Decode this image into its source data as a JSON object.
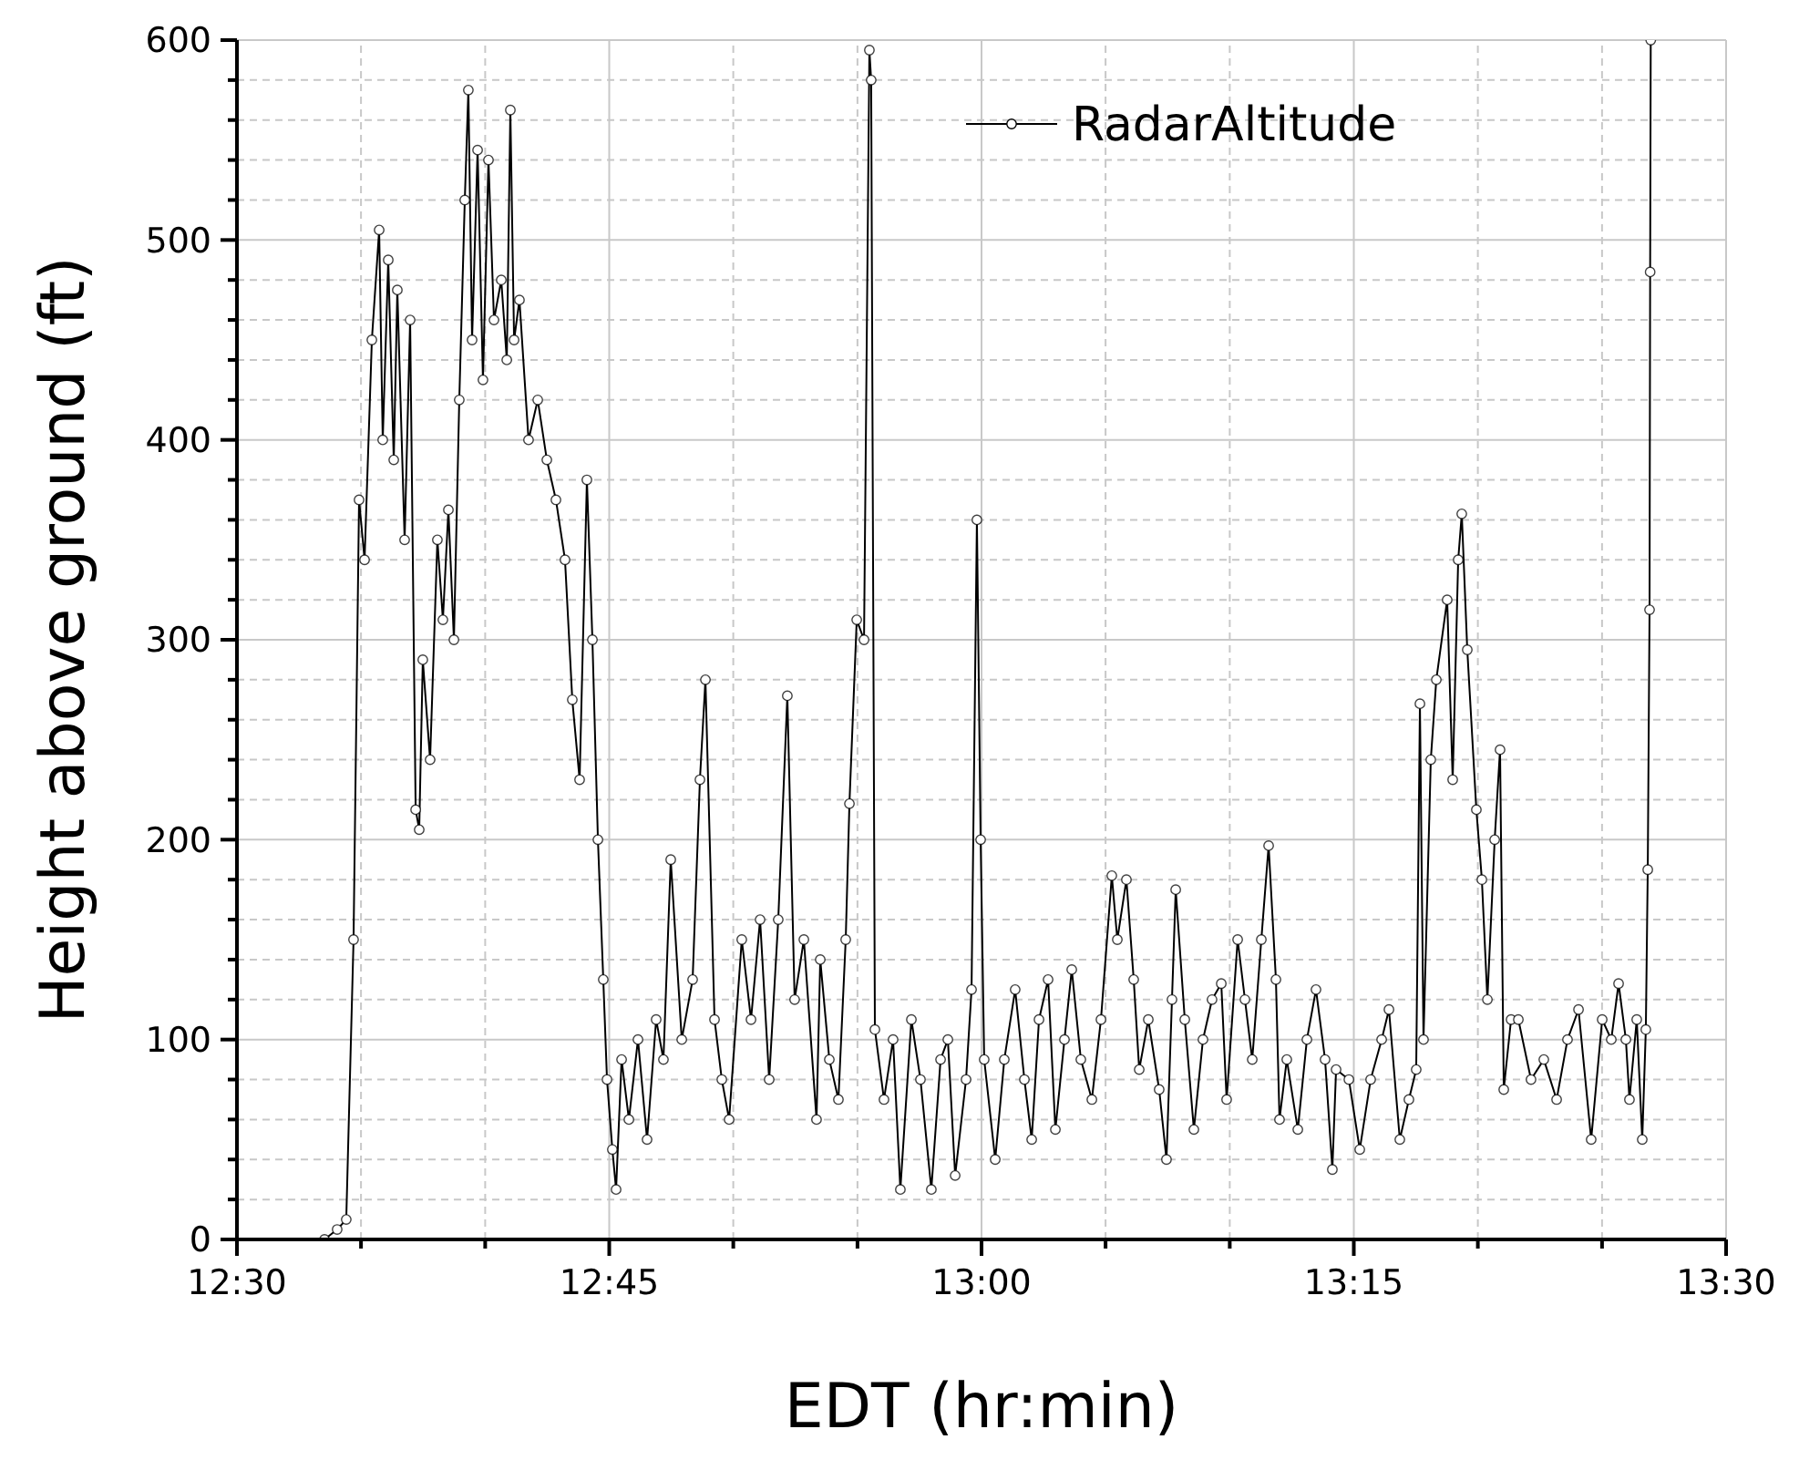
{
  "chart_data": {
    "type": "line",
    "xlabel": "EDT (hr:min)",
    "ylabel": "Height above ground (ft)",
    "xlim": [
      12.5,
      13.5
    ],
    "ylim": [
      0,
      600
    ],
    "xticks": [
      {
        "value": 12.5,
        "label": "12:30"
      },
      {
        "value": 12.5833,
        "label": null
      },
      {
        "value": 12.6667,
        "label": null
      },
      {
        "value": 12.75,
        "label": "12:45"
      },
      {
        "value": 12.8333,
        "label": null
      },
      {
        "value": 12.9167,
        "label": null
      },
      {
        "value": 13,
        "label": "13:00"
      },
      {
        "value": 13.0833,
        "label": null
      },
      {
        "value": 13.1667,
        "label": null
      },
      {
        "value": 13.25,
        "label": "13:15"
      },
      {
        "value": 13.3333,
        "label": null
      },
      {
        "value": 13.4167,
        "label": null
      },
      {
        "value": 13.5,
        "label": "13:30"
      }
    ],
    "yticks": [
      0,
      {
        "value": 20,
        "label": null
      },
      {
        "value": 40,
        "label": null
      },
      {
        "value": 60,
        "label": null
      },
      {
        "value": 80,
        "label": null
      },
      100,
      {
        "value": 120,
        "label": null
      },
      {
        "value": 140,
        "label": null
      },
      {
        "value": 160,
        "label": null
      },
      {
        "value": 180,
        "label": null
      },
      200,
      {
        "value": 220,
        "label": null
      },
      {
        "value": 240,
        "label": null
      },
      {
        "value": 260,
        "label": null
      },
      {
        "value": 280,
        "label": null
      },
      300,
      {
        "value": 320,
        "label": null
      },
      {
        "value": 340,
        "label": null
      },
      {
        "value": 360,
        "label": null
      },
      {
        "value": 380,
        "label": null
      },
      400,
      {
        "value": 420,
        "label": null
      },
      {
        "value": 440,
        "label": null
      },
      {
        "value": 460,
        "label": null
      },
      {
        "value": 480,
        "label": null
      },
      500,
      {
        "value": 520,
        "label": null
      },
      {
        "value": 540,
        "label": null
      },
      {
        "value": 560,
        "label": null
      },
      {
        "value": 580,
        "label": null
      },
      600
    ],
    "grid": true,
    "legend": "top right",
    "marker": "circle",
    "line_style": "solid",
    "series": [
      {
        "name": "RadarAltitude",
        "color": "#000000",
        "x": [
          12.5588,
          12.5673,
          12.5734,
          12.5783,
          12.582,
          12.5857,
          12.5906,
          12.5955,
          12.5979,
          12.6016,
          12.6053,
          12.6077,
          12.6126,
          12.6163,
          12.62,
          12.6224,
          12.6248,
          12.6297,
          12.6346,
          12.6383,
          12.642,
          12.6457,
          12.6493,
          12.653,
          12.6554,
          12.6579,
          12.6616,
          12.6652,
          12.6689,
          12.6726,
          12.6775,
          12.6812,
          12.6836,
          12.6861,
          12.6897,
          12.6958,
          12.702,
          12.7081,
          12.7142,
          12.7203,
          12.7252,
          12.7301,
          12.735,
          12.7387,
          12.7424,
          12.746,
          12.7485,
          12.7521,
          12.7546,
          12.7583,
          12.7632,
          12.7693,
          12.7754,
          12.7815,
          12.7864,
          12.7913,
          12.7987,
          12.806,
          12.8109,
          12.8146,
          12.8207,
          12.8256,
          12.8305,
          12.839,
          12.8452,
          12.8513,
          12.8574,
          12.8635,
          12.8696,
          12.8745,
          12.8807,
          12.8892,
          12.8917,
          12.8978,
          12.9039,
          12.9088,
          12.9113,
          12.9162,
          12.9211,
          12.9247,
          12.9259,
          12.9284,
          12.9345,
          12.9406,
          12.9455,
          12.9529,
          12.959,
          12.9663,
          12.9725,
          12.9774,
          12.9823,
          12.9896,
          12.9933,
          12.9969,
          12.9994,
          13.0018,
          13.0092,
          13.0153,
          13.0226,
          13.0288,
          13.0337,
          13.0386,
          13.0447,
          13.0496,
          13.0557,
          13.0606,
          13.0667,
          13.0741,
          13.0802,
          13.0875,
          13.0912,
          13.0973,
          13.1022,
          13.1059,
          13.112,
          13.1193,
          13.1242,
          13.1279,
          13.1304,
          13.1365,
          13.1426,
          13.1487,
          13.1548,
          13.161,
          13.1646,
          13.172,
          13.1769,
          13.1818,
          13.1879,
          13.1928,
          13.1977,
          13.2001,
          13.205,
          13.2124,
          13.2185,
          13.2246,
          13.2307,
          13.2356,
          13.2381,
          13.2467,
          13.254,
          13.2613,
          13.2687,
          13.2736,
          13.2809,
          13.287,
          13.2919,
          13.2944,
          13.2968,
          13.3017,
          13.3054,
          13.3127,
          13.3164,
          13.3201,
          13.3225,
          13.3262,
          13.3323,
          13.336,
          13.3397,
          13.3446,
          13.3482,
          13.3507,
          13.3556,
          13.3605,
          13.369,
          13.3776,
          13.3862,
          13.3935,
          13.4009,
          13.4094,
          13.4168,
          13.4229,
          13.4278,
          13.4327,
          13.4351,
          13.44,
          13.4437,
          13.4461,
          13.4474,
          13.4486,
          13.449,
          13.4494
        ],
        "values": [
          0,
          5,
          10,
          150,
          370,
          340,
          450,
          505,
          400,
          490,
          390,
          475,
          350,
          460,
          215,
          205,
          290,
          240,
          350,
          310,
          365,
          300,
          420,
          520,
          575,
          450,
          545,
          430,
          540,
          460,
          480,
          440,
          565,
          450,
          470,
          400,
          420,
          390,
          370,
          340,
          270,
          230,
          380,
          300,
          200,
          130,
          80,
          45,
          25,
          90,
          60,
          100,
          50,
          110,
          90,
          190,
          100,
          130,
          230,
          280,
          110,
          80,
          60,
          150,
          110,
          160,
          80,
          160,
          272,
          120,
          150,
          60,
          140,
          90,
          70,
          150,
          218,
          310,
          300,
          595,
          580,
          105,
          70,
          100,
          25,
          110,
          80,
          25,
          90,
          100,
          32,
          80,
          125,
          360,
          200,
          90,
          40,
          90,
          125,
          80,
          50,
          110,
          130,
          55,
          100,
          135,
          90,
          70,
          110,
          182,
          150,
          180,
          130,
          85,
          110,
          75,
          40,
          120,
          175,
          110,
          55,
          100,
          120,
          128,
          70,
          150,
          120,
          90,
          150,
          197,
          130,
          60,
          90,
          55,
          100,
          125,
          90,
          35,
          85,
          80,
          45,
          80,
          100,
          115,
          50,
          70,
          85,
          268,
          100,
          240,
          280,
          320,
          230,
          340,
          363,
          295,
          215,
          180,
          120,
          200,
          245,
          75,
          110,
          110,
          80,
          90,
          70,
          100,
          115,
          50,
          110,
          100,
          128,
          100,
          70,
          110,
          50,
          105,
          185,
          315,
          484,
          600
        ]
      }
    ]
  }
}
